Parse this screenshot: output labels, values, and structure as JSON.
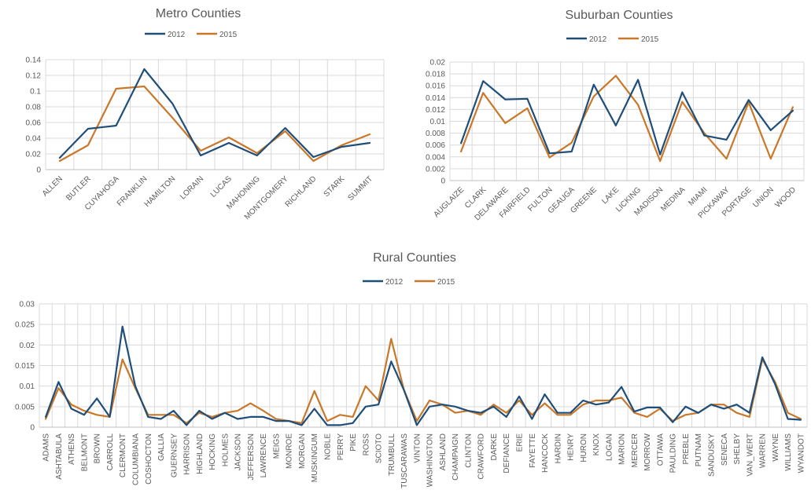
{
  "chart_data": [
    {
      "id": "metro",
      "type": "line",
      "title": "Metro Counties",
      "categories": [
        "ALLEN",
        "BUTLER",
        "CUYAHOGA",
        "FRANKLIN",
        "HAMILTON",
        "LORAIN",
        "LUCAS",
        "MAHONING",
        "MONTGOMERY",
        "RICHLAND",
        "STARK",
        "SUMMIT"
      ],
      "series": [
        {
          "name": "2012",
          "color": "#1f4e79",
          "values": [
            0.015,
            0.052,
            0.056,
            0.128,
            0.084,
            0.018,
            0.034,
            0.018,
            0.053,
            0.016,
            0.029,
            0.034
          ]
        },
        {
          "name": "2015",
          "color": "#c9782a",
          "values": [
            0.011,
            0.031,
            0.103,
            0.106,
            0.066,
            0.024,
            0.041,
            0.021,
            0.049,
            0.011,
            0.031,
            0.045
          ]
        }
      ],
      "ylim": [
        0,
        0.14
      ],
      "yticks": [
        "0",
        "0.02",
        "0.04",
        "0.06",
        "0.08",
        "0.1",
        "0.12",
        "0.14"
      ],
      "grid": true,
      "legend_position": "top"
    },
    {
      "id": "suburban",
      "type": "line",
      "title": "Suburban Counties",
      "categories": [
        "AUGLAIZE",
        "CLARK",
        "DELAWARE",
        "FAIRFIELD",
        "FULTON",
        "GEAUGA",
        "GREENE",
        "LAKE",
        "LICKING",
        "MADISON",
        "MEDINA",
        "MIAMI",
        "PICKAWAY",
        "PORTAGE",
        "UNION",
        "WOOD"
      ],
      "series": [
        {
          "name": "2012",
          "color": "#1f4e79",
          "values": [
            0.0063,
            0.0168,
            0.0137,
            0.0138,
            0.0046,
            0.0049,
            0.0162,
            0.0093,
            0.017,
            0.0044,
            0.0149,
            0.0076,
            0.0069,
            0.0136,
            0.0085,
            0.0118
          ]
        },
        {
          "name": "2015",
          "color": "#c9782a",
          "values": [
            0.0049,
            0.0148,
            0.0097,
            0.0122,
            0.0039,
            0.0064,
            0.0142,
            0.0177,
            0.0128,
            0.0033,
            0.0133,
            0.008,
            0.0037,
            0.0132,
            0.0037,
            0.0124
          ]
        }
      ],
      "ylim": [
        0,
        0.02
      ],
      "yticks": [
        "0",
        "0.002",
        "0.004",
        "0.006",
        "0.008",
        "0.01",
        "0.012",
        "0.014",
        "0.016",
        "0.018",
        "0.02"
      ],
      "grid": true,
      "legend_position": "top"
    },
    {
      "id": "rural",
      "type": "line",
      "title": "Rural Counties",
      "categories": [
        "ADAMS",
        "ASHTABULA",
        "ATHENS",
        "BELMONT",
        "BROWN",
        "CARROLL",
        "CLERMONT",
        "COLUMBIANA",
        "COSHOCTON",
        "GALLIA",
        "GUERNSEY",
        "HARRISON",
        "HIGHLAND",
        "HOCKING",
        "HOLMES",
        "JACKSON",
        "JEFFERSON",
        "LAWRENCE",
        "MEIGS",
        "MONROE",
        "MORGAN",
        "MUSKINGUM",
        "NOBLE",
        "PERRY",
        "PIKE",
        "ROSS",
        "SCIOTO",
        "TRUMBULL",
        "TUSCARAWAS",
        "VINTON",
        "WASHINGTON",
        "ASHLAND",
        "CHAMPAIGN",
        "CLINTON",
        "CRAWFORD",
        "DARKE",
        "DEFIANCE",
        "ERIE",
        "FAYETTE",
        "HANCOCK",
        "HARDIN",
        "HENRY",
        "HURON",
        "KNOX",
        "LOGAN",
        "MARION",
        "MERCER",
        "MORROW",
        "OTTAWA",
        "PAULDING",
        "PREBLE",
        "PUTNAM",
        "SANDUSKY",
        "SENECA",
        "SHELBY",
        "VAN_WERT",
        "WARREN",
        "WAYNE",
        "WILLIAMS",
        "WYANDOT"
      ],
      "series": [
        {
          "name": "2012",
          "color": "#1f4e79",
          "values": [
            0.0025,
            0.011,
            0.0045,
            0.003,
            0.007,
            0.0025,
            0.0245,
            0.01,
            0.0025,
            0.002,
            0.004,
            0.0005,
            0.004,
            0.002,
            0.0035,
            0.002,
            0.0025,
            0.0025,
            0.0015,
            0.0015,
            0.0005,
            0.0045,
            0.0005,
            0.0005,
            0.001,
            0.005,
            0.0055,
            0.016,
            0.009,
            0.0005,
            0.005,
            0.0055,
            0.005,
            0.004,
            0.0035,
            0.005,
            0.0025,
            0.0075,
            0.002,
            0.008,
            0.0035,
            0.0035,
            0.0065,
            0.0055,
            0.006,
            0.0098,
            0.0038,
            0.0048,
            0.0048,
            0.0012,
            0.005,
            0.0035,
            0.0055,
            0.0045,
            0.0055,
            0.0035,
            0.017,
            0.0105,
            0.002,
            0.0018
          ]
        },
        {
          "name": "2015",
          "color": "#c9782a",
          "values": [
            0.002,
            0.0095,
            0.0055,
            0.004,
            0.003,
            0.0025,
            0.0165,
            0.0095,
            0.003,
            0.003,
            0.003,
            0.001,
            0.0035,
            0.0025,
            0.0035,
            0.004,
            0.0058,
            0.004,
            0.002,
            0.0015,
            0.001,
            0.0088,
            0.0015,
            0.003,
            0.0025,
            0.01,
            0.0065,
            0.0215,
            0.009,
            0.0015,
            0.0065,
            0.0055,
            0.0035,
            0.004,
            0.003,
            0.0055,
            0.0035,
            0.0065,
            0.003,
            0.0058,
            0.003,
            0.003,
            0.0055,
            0.0065,
            0.0065,
            0.0072,
            0.0035,
            0.0025,
            0.0045,
            0.0015,
            0.003,
            0.0035,
            0.0055,
            0.0055,
            0.0035,
            0.0025,
            0.0165,
            0.011,
            0.0035,
            0.002
          ]
        }
      ],
      "ylim": [
        0,
        0.03
      ],
      "yticks": [
        "0",
        "0.005",
        "0.01",
        "0.015",
        "0.02",
        "0.025",
        "0.03"
      ],
      "grid": true,
      "legend_position": "top"
    }
  ]
}
